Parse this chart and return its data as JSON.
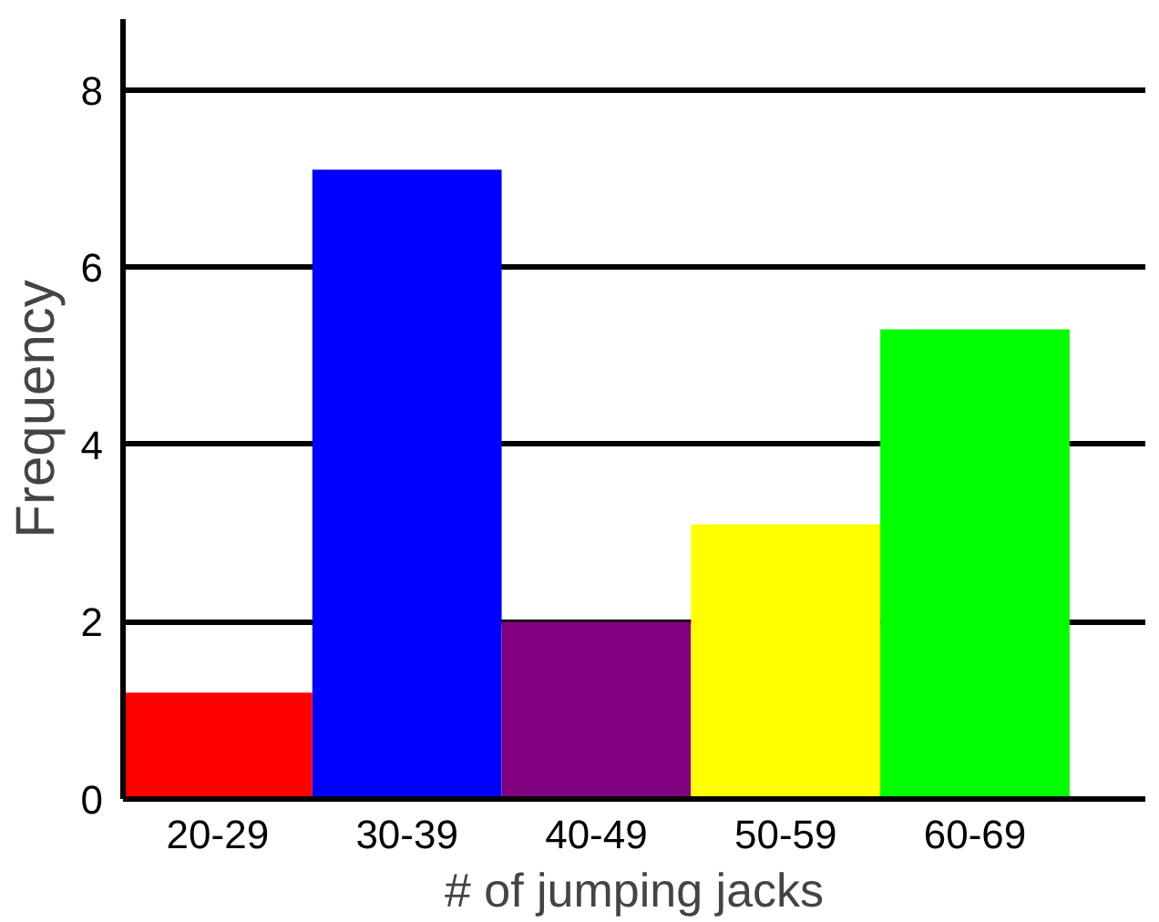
{
  "chart_data": {
    "type": "bar",
    "categories": [
      "20-29",
      "30-39",
      "40-49",
      "50-59",
      "60-69"
    ],
    "values": [
      1.2,
      7.1,
      2,
      3.1,
      5.3
    ],
    "colors": [
      "#ff0000",
      "#0000ff",
      "#800080",
      "#ffff00",
      "#00ff00"
    ],
    "xlabel": "# of jumping jacks",
    "ylabel": "Frequency",
    "ylim": [
      0,
      8.8
    ],
    "yticks": [
      0,
      2,
      4,
      6,
      8
    ],
    "grid": "y"
  }
}
